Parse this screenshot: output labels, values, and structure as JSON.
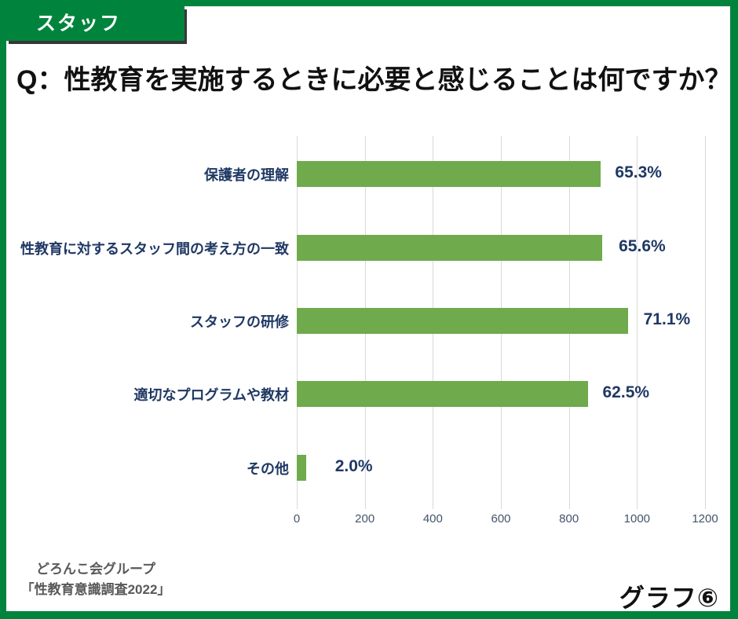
{
  "badge": {
    "label": "スタッフ"
  },
  "title": "Q：性教育を実施するときに必要と感じることは何ですか？",
  "chart_data": {
    "type": "bar",
    "orientation": "horizontal",
    "title": "Q：性教育を実施するときに必要と感じることは何ですか？",
    "categories": [
      "保護者の理解",
      "性教育に対するスタッフ間の考え方の一致",
      "スタッフの研修",
      "適切なプログラムや教材",
      "その他"
    ],
    "values": [
      894,
      898,
      973,
      855,
      27
    ],
    "percent_labels": [
      "65.3%",
      "65.6%",
      "71.1%",
      "62.5%",
      "2.0%"
    ],
    "xlabel": "",
    "ylabel": "",
    "xlim": [
      0,
      1200
    ],
    "x_ticks": [
      0,
      200,
      400,
      600,
      800,
      1000,
      1200
    ],
    "grid": true,
    "legend": "none",
    "bar_color": "#6FAA4C",
    "label_color": "#1F3864",
    "tick_color": "#44546A"
  },
  "footer": {
    "source_line1": "どろんこ会グループ",
    "source_line2": "「性教育意識調査2022」",
    "graph_number": "グラフ⑥"
  },
  "colors": {
    "frame_green": "#00843D",
    "grid_gray": "#d9d9d9",
    "title_black": "#111111",
    "source_gray": "#595959"
  }
}
